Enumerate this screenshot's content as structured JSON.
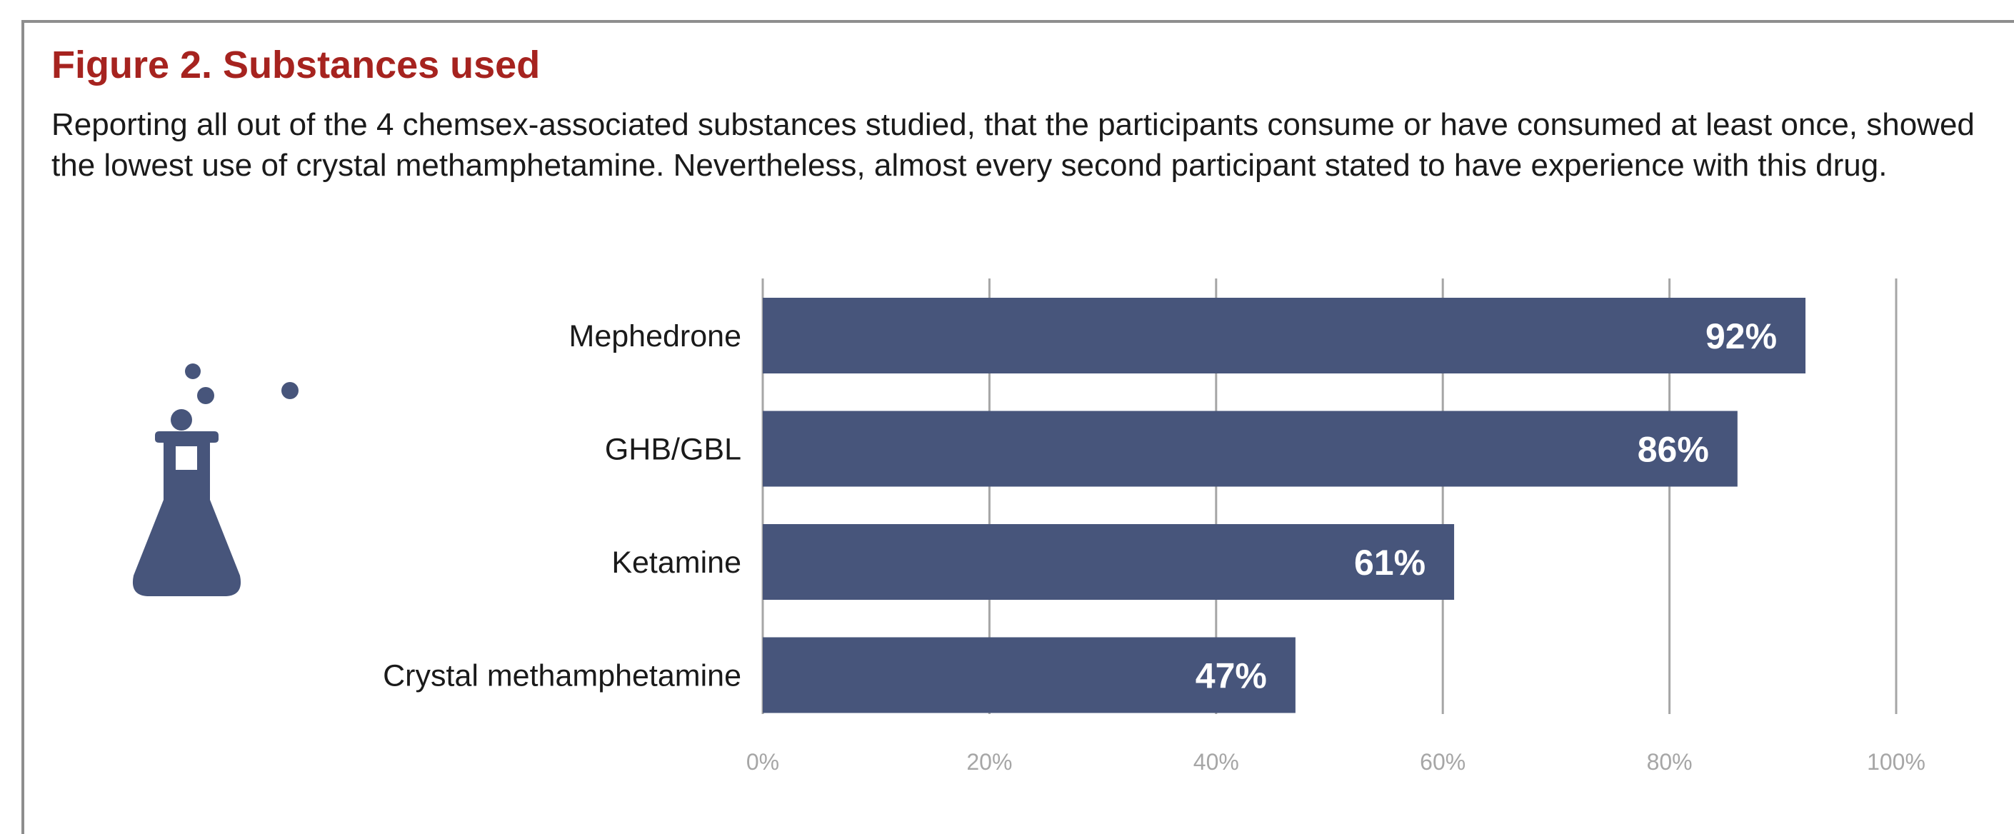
{
  "figure": {
    "title": "Figure 2. Substances used",
    "description": "Reporting all out of the 4 chemsex-associated substances studied, that the participants consume or have consumed at least once, showed the lowest use of crystal methamphetamine. Nevertheless, almost every second participant stated to have experience with this drug."
  },
  "icon": "lab-flask-icon",
  "colors": {
    "title": "#a6231f",
    "bar": "#47557b",
    "grid": "#a6a6a6",
    "tick_label": "#a6a6a6",
    "bar_label": "#ffffff"
  },
  "chart_data": {
    "type": "bar",
    "orientation": "horizontal",
    "categories": [
      "Mephedrone",
      "GHB/GBL",
      "Ketamine",
      "Crystal methamphetamine"
    ],
    "values": [
      92,
      86,
      61,
      47
    ],
    "value_labels": [
      "92%",
      "86%",
      "61%",
      "47%"
    ],
    "xlim": [
      0,
      100
    ],
    "xticks": [
      "0%",
      "20%",
      "40%",
      "60%",
      "80%",
      "100%"
    ],
    "grid": true,
    "legend": false
  }
}
